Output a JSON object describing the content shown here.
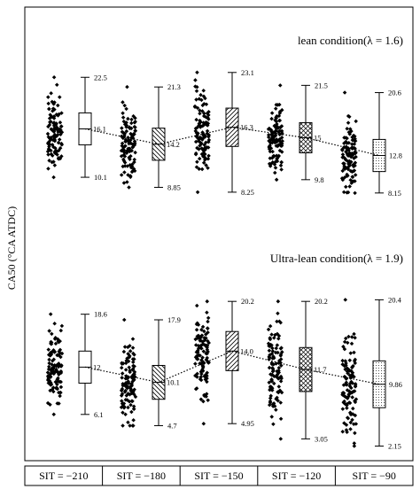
{
  "chart_data": {
    "type": "box-scatter",
    "ylabel": "CA50 (°CA ATDC)",
    "categories": [
      "SIT = −210",
      "SIT = −180",
      "SIT = −150",
      "SIT = −120",
      "SIT = −90"
    ],
    "grid": false,
    "panels": [
      {
        "title": "lean condition(λ = 1.6)",
        "series": [
          {
            "category": "SIT = −210",
            "max": 22.5,
            "median": 16.1,
            "min": 10.1,
            "pattern": "none"
          },
          {
            "category": "SIT = −180",
            "max": 21.3,
            "median": 14.2,
            "min": 8.85,
            "pattern": "hatch-back"
          },
          {
            "category": "SIT = −150",
            "max": 23.1,
            "median": 16.3,
            "min": 8.25,
            "pattern": "hatch-forward"
          },
          {
            "category": "SIT = −120",
            "max": 21.5,
            "median": 15,
            "min": 9.8,
            "pattern": "crosshatch"
          },
          {
            "category": "SIT = −90",
            "max": 20.6,
            "median": 12.8,
            "min": 8.15,
            "pattern": "dots"
          }
        ],
        "stat_labels": {
          "max": [
            "22.5",
            "21.3",
            "23.1",
            "21.5",
            "20.6"
          ],
          "median": [
            "16.1",
            "14.2",
            "16.3",
            "15",
            "12.8"
          ],
          "min": [
            "10.1",
            "8.85",
            "8.25",
            "9.8",
            "8.15"
          ]
        }
      },
      {
        "title": "Ultra-lean condition(λ = 1.9)",
        "series": [
          {
            "category": "SIT = −210",
            "max": 18.6,
            "median": 12,
            "min": 6.1,
            "pattern": "none"
          },
          {
            "category": "SIT = −180",
            "max": 17.9,
            "median": 10.1,
            "min": 4.7,
            "pattern": "hatch-back"
          },
          {
            "category": "SIT = −150",
            "max": 20.2,
            "median": 14.0,
            "min": 4.95,
            "pattern": "hatch-forward"
          },
          {
            "category": "SIT = −120",
            "max": 20.2,
            "median": 11.7,
            "min": 3.05,
            "pattern": "crosshatch"
          },
          {
            "category": "SIT = −90",
            "max": 20.4,
            "median": 9.86,
            "min": 2.15,
            "pattern": "dots"
          }
        ],
        "stat_labels": {
          "max": [
            "18.6",
            "17.9",
            "20.2",
            "20.2",
            "20.4"
          ],
          "median": [
            "12",
            "10.1",
            "14.0",
            "11.7",
            "9.86"
          ],
          "min": [
            "6.1",
            "4.7",
            "4.95",
            "3.05",
            "2.15"
          ]
        }
      }
    ]
  }
}
